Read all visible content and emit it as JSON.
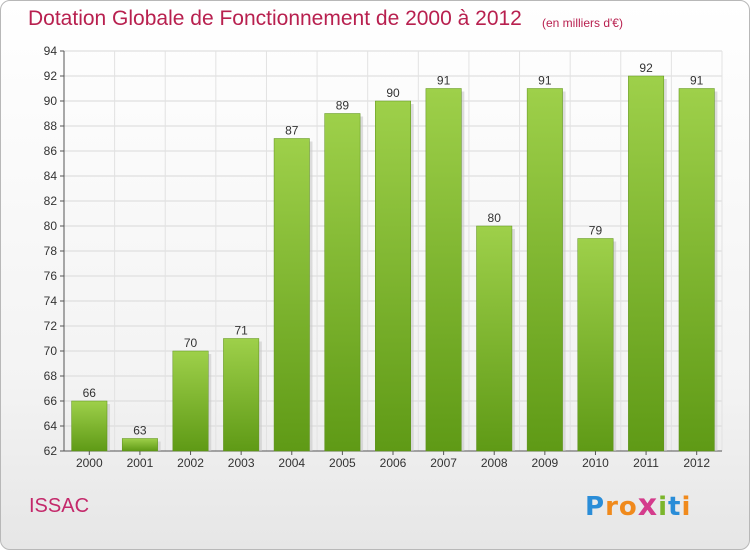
{
  "chart_data": {
    "type": "bar",
    "title": "Dotation Globale de Fonctionnement de 2000 à 2012",
    "subtitle": "(en milliers d'€)",
    "categories": [
      "2000",
      "2001",
      "2002",
      "2003",
      "2004",
      "2005",
      "2006",
      "2007",
      "2008",
      "2009",
      "2010",
      "2011",
      "2012"
    ],
    "values": [
      66,
      63,
      70,
      71,
      87,
      89,
      90,
      91,
      80,
      91,
      79,
      92,
      91
    ],
    "ylim": [
      62,
      94
    ],
    "yticks": [
      62,
      64,
      66,
      68,
      70,
      72,
      74,
      76,
      78,
      80,
      82,
      84,
      86,
      88,
      90,
      92,
      94
    ],
    "grid": true,
    "bar_color": "#7dbb2c"
  },
  "footer": {
    "commune": "ISSAC",
    "logo_letters": [
      "P",
      "r",
      "o",
      "x",
      "i",
      "t",
      "i"
    ],
    "logo_colors": [
      "#2a8dd8",
      "#f08a1c",
      "#f08a1c",
      "#d43c8c",
      "#7bb52b",
      "#2a8dd8",
      "#f08a1c"
    ]
  }
}
